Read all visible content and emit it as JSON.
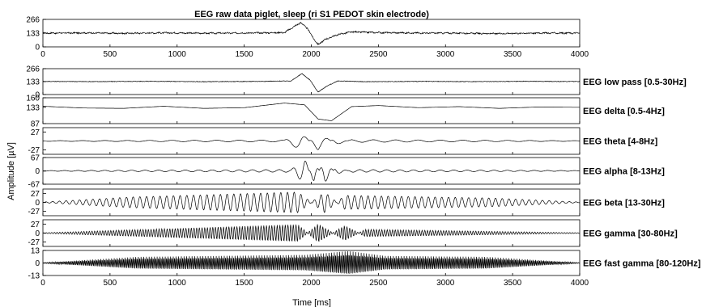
{
  "chart_data": {
    "type": "line",
    "title": "EEG raw data piglet, sleep (ri S1 PEDOT skin electrode)",
    "xlabel": "Time [ms]",
    "ylabel": "Amplitude [µV]",
    "xlim": [
      0,
      4000
    ],
    "x_ticks": [
      "0",
      "500",
      "1000",
      "1500",
      "2000",
      "2500",
      "3000",
      "3500",
      "4000"
    ],
    "grid": false,
    "panels": [
      {
        "name": "",
        "ylim": [
          0,
          266
        ],
        "y_ticks": [
          "266",
          "133",
          "0"
        ],
        "baseline": 133,
        "series": [
          {
            "t": 0,
            "v": 133
          },
          {
            "t": 300,
            "v": 135
          },
          {
            "t": 600,
            "v": 131
          },
          {
            "t": 900,
            "v": 136
          },
          {
            "t": 1200,
            "v": 132
          },
          {
            "t": 1500,
            "v": 134
          },
          {
            "t": 1800,
            "v": 138
          },
          {
            "t": 1920,
            "v": 235
          },
          {
            "t": 1970,
            "v": 180
          },
          {
            "t": 2010,
            "v": 95
          },
          {
            "t": 2050,
            "v": 20
          },
          {
            "t": 2100,
            "v": 70
          },
          {
            "t": 2200,
            "v": 120
          },
          {
            "t": 2300,
            "v": 145
          },
          {
            "t": 2500,
            "v": 138
          },
          {
            "t": 2800,
            "v": 134
          },
          {
            "t": 3100,
            "v": 133
          },
          {
            "t": 3350,
            "v": 128
          },
          {
            "t": 3700,
            "v": 134
          },
          {
            "t": 4000,
            "v": 133
          }
        ]
      },
      {
        "name": "EEG low pass [0.5-30Hz]",
        "ylim": [
          0,
          266
        ],
        "y_ticks": [
          "266",
          "133",
          "0"
        ],
        "baseline": 133,
        "series": [
          {
            "t": 0,
            "v": 135
          },
          {
            "t": 400,
            "v": 133
          },
          {
            "t": 800,
            "v": 136
          },
          {
            "t": 1200,
            "v": 132
          },
          {
            "t": 1600,
            "v": 135
          },
          {
            "t": 1850,
            "v": 140
          },
          {
            "t": 1930,
            "v": 215
          },
          {
            "t": 1990,
            "v": 150
          },
          {
            "t": 2050,
            "v": 25
          },
          {
            "t": 2120,
            "v": 90
          },
          {
            "t": 2200,
            "v": 140
          },
          {
            "t": 2400,
            "v": 132
          },
          {
            "t": 2800,
            "v": 135
          },
          {
            "t": 3200,
            "v": 133
          },
          {
            "t": 3600,
            "v": 136
          },
          {
            "t": 4000,
            "v": 134
          }
        ]
      },
      {
        "name": "EEG delta [0.5-4Hz]",
        "ylim": [
          87,
          160
        ],
        "y_ticks": [
          "160",
          "133",
          "87"
        ],
        "baseline": 133,
        "series": [
          {
            "t": 0,
            "v": 136
          },
          {
            "t": 300,
            "v": 131
          },
          {
            "t": 600,
            "v": 130
          },
          {
            "t": 900,
            "v": 136
          },
          {
            "t": 1200,
            "v": 130
          },
          {
            "t": 1500,
            "v": 132
          },
          {
            "t": 1800,
            "v": 145
          },
          {
            "t": 1950,
            "v": 140
          },
          {
            "t": 2050,
            "v": 100
          },
          {
            "t": 2150,
            "v": 95
          },
          {
            "t": 2300,
            "v": 135
          },
          {
            "t": 2500,
            "v": 138
          },
          {
            "t": 2800,
            "v": 132
          },
          {
            "t": 3100,
            "v": 135
          },
          {
            "t": 3400,
            "v": 130
          },
          {
            "t": 3700,
            "v": 134
          },
          {
            "t": 4000,
            "v": 133
          }
        ]
      },
      {
        "name": "EEG theta [4-8Hz]",
        "ylim": [
          -40,
          40
        ],
        "y_ticks": [
          "27",
          "-27"
        ],
        "baseline": 0,
        "series": [
          {
            "t": 0,
            "v": 0
          },
          {
            "t": 1800,
            "v": 2
          },
          {
            "t": 1920,
            "v": 25
          },
          {
            "t": 2050,
            "v": -26
          },
          {
            "t": 2180,
            "v": 10
          },
          {
            "t": 2300,
            "v": -3
          },
          {
            "t": 4000,
            "v": 0
          }
        ]
      },
      {
        "name": "EEG alpha [8-13Hz]",
        "ylim": [
          -67,
          67
        ],
        "y_ticks": [
          "67",
          "0",
          "-67"
        ],
        "baseline": 0,
        "series": [
          {
            "t": 0,
            "v": 0
          },
          {
            "t": 1850,
            "v": 5
          },
          {
            "t": 1950,
            "v": 60
          },
          {
            "t": 2020,
            "v": -55
          },
          {
            "t": 2100,
            "v": 58
          },
          {
            "t": 2180,
            "v": -15
          },
          {
            "t": 2300,
            "v": 5
          },
          {
            "t": 4000,
            "v": 0
          }
        ]
      },
      {
        "name": "EEG beta [13-30Hz]",
        "ylim": [
          -40,
          40
        ],
        "y_ticks": [
          "27",
          "0",
          "-27"
        ],
        "baseline": 0,
        "series": [
          {
            "t": 0,
            "v": 0
          },
          {
            "t": 650,
            "v": 15
          },
          {
            "t": 1900,
            "v": 30
          },
          {
            "t": 2100,
            "v": -30
          },
          {
            "t": 2250,
            "v": 20
          },
          {
            "t": 3350,
            "v": 12
          },
          {
            "t": 4000,
            "v": 0
          }
        ]
      },
      {
        "name": "EEG gamma [30-80Hz]",
        "ylim": [
          -40,
          40
        ],
        "y_ticks": [
          "27",
          "0",
          "-27"
        ],
        "baseline": 0,
        "series": [
          {
            "t": 0,
            "v": 0
          },
          {
            "t": 1900,
            "v": 25
          },
          {
            "t": 2050,
            "v": -27
          },
          {
            "t": 2250,
            "v": 22
          },
          {
            "t": 2400,
            "v": -10
          },
          {
            "t": 4000,
            "v": 0
          }
        ]
      },
      {
        "name": "EEG fast gamma [80-120Hz]",
        "ylim": [
          -13,
          13
        ],
        "y_ticks": [
          "13",
          "0",
          "-13"
        ],
        "baseline": 0,
        "series": [
          {
            "t": 0,
            "v": 0
          },
          {
            "t": 700,
            "v": 6
          },
          {
            "t": 1950,
            "v": 8
          },
          {
            "t": 2280,
            "v": 12
          },
          {
            "t": 2550,
            "v": 7
          },
          {
            "t": 3300,
            "v": 6
          },
          {
            "t": 4000,
            "v": 0
          }
        ]
      }
    ]
  }
}
